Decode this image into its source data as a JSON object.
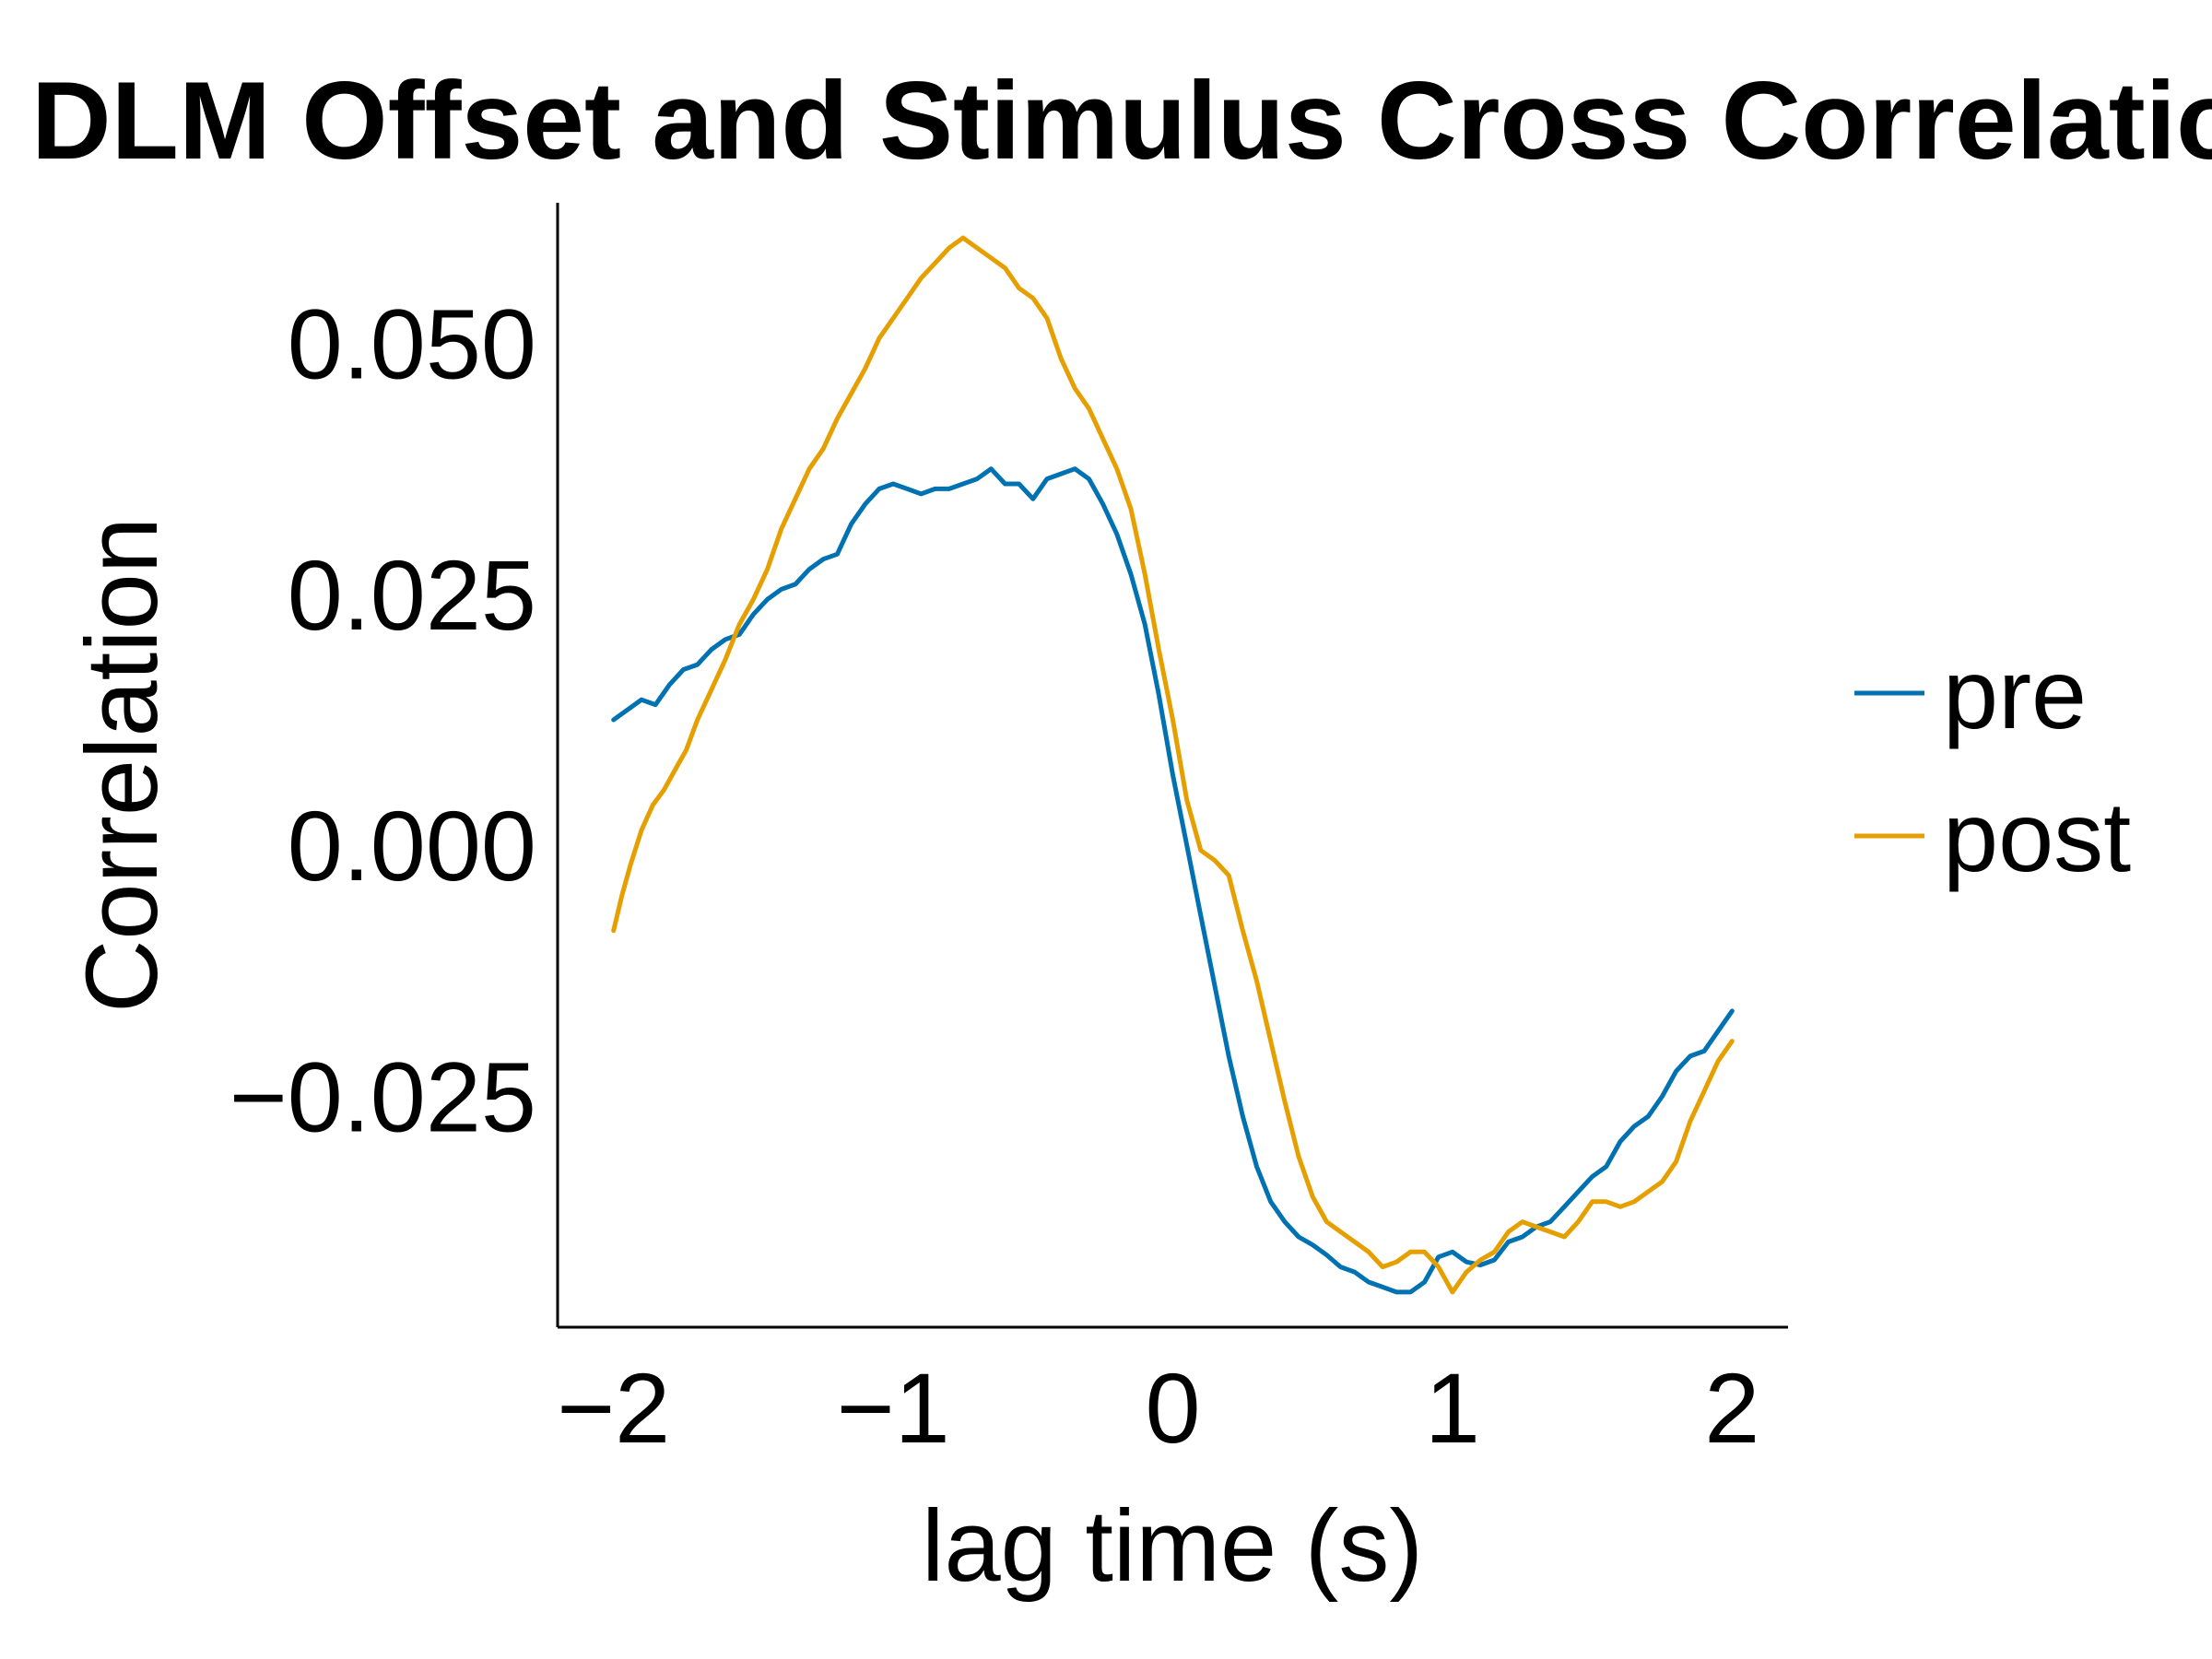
{
  "chart_data": {
    "type": "line",
    "title": "DLM Offset and Stimulus Cross Correlatio",
    "xlabel": "lag time (s)",
    "ylabel": "Correlation",
    "xlim": [
      -2.2,
      2.2
    ],
    "ylim": [
      -0.048,
      0.064
    ],
    "x_ticks": [
      -2,
      -1,
      0,
      1,
      2
    ],
    "x_tick_labels": [
      "−2",
      "−1",
      "0",
      "1",
      "2"
    ],
    "y_ticks": [
      -0.025,
      0.0,
      0.025,
      0.05
    ],
    "y_tick_labels": [
      "−0.025",
      "0.000",
      "0.025",
      "0.050"
    ],
    "grid": false,
    "legend_position": "right",
    "series": [
      {
        "name": "pre",
        "color": "#0072B2",
        "points": [
          [
            -2.0,
            0.0125
          ],
          [
            -1.9,
            0.0145
          ],
          [
            -1.85,
            0.014
          ],
          [
            -1.8,
            0.016
          ],
          [
            -1.75,
            0.0175
          ],
          [
            -1.7,
            0.018
          ],
          [
            -1.65,
            0.0195
          ],
          [
            -1.6,
            0.0205
          ],
          [
            -1.55,
            0.021
          ],
          [
            -1.5,
            0.023
          ],
          [
            -1.45,
            0.0245
          ],
          [
            -1.4,
            0.0255
          ],
          [
            -1.35,
            0.026
          ],
          [
            -1.3,
            0.0275
          ],
          [
            -1.25,
            0.0285
          ],
          [
            -1.2,
            0.029
          ],
          [
            -1.15,
            0.032
          ],
          [
            -1.1,
            0.034
          ],
          [
            -1.05,
            0.0355
          ],
          [
            -1.0,
            0.036
          ],
          [
            -0.95,
            0.0355
          ],
          [
            -0.9,
            0.035
          ],
          [
            -0.85,
            0.0355
          ],
          [
            -0.8,
            0.0355
          ],
          [
            -0.75,
            0.036
          ],
          [
            -0.7,
            0.0365
          ],
          [
            -0.65,
            0.0375
          ],
          [
            -0.6,
            0.036
          ],
          [
            -0.55,
            0.036
          ],
          [
            -0.5,
            0.0345
          ],
          [
            -0.45,
            0.0365
          ],
          [
            -0.4,
            0.037
          ],
          [
            -0.35,
            0.0375
          ],
          [
            -0.3,
            0.0365
          ],
          [
            -0.25,
            0.034
          ],
          [
            -0.2,
            0.031
          ],
          [
            -0.15,
            0.027
          ],
          [
            -0.1,
            0.022
          ],
          [
            -0.05,
            0.015
          ],
          [
            0.0,
            0.007
          ],
          [
            0.05,
            0.0
          ],
          [
            0.1,
            -0.007
          ],
          [
            0.15,
            -0.014
          ],
          [
            0.2,
            -0.021
          ],
          [
            0.25,
            -0.027
          ],
          [
            0.3,
            -0.032
          ],
          [
            0.35,
            -0.0355
          ],
          [
            0.4,
            -0.0375
          ],
          [
            0.45,
            -0.039
          ],
          [
            0.5,
            -0.0398
          ],
          [
            0.55,
            -0.0408
          ],
          [
            0.6,
            -0.042
          ],
          [
            0.65,
            -0.0425
          ],
          [
            0.7,
            -0.0435
          ],
          [
            0.75,
            -0.044
          ],
          [
            0.8,
            -0.0445
          ],
          [
            0.85,
            -0.0445
          ],
          [
            0.9,
            -0.0435
          ],
          [
            0.95,
            -0.041
          ],
          [
            1.0,
            -0.0405
          ],
          [
            1.05,
            -0.0415
          ],
          [
            1.1,
            -0.0418
          ],
          [
            1.15,
            -0.0413
          ],
          [
            1.2,
            -0.0395
          ],
          [
            1.25,
            -0.039
          ],
          [
            1.3,
            -0.038
          ],
          [
            1.35,
            -0.0375
          ],
          [
            1.4,
            -0.036
          ],
          [
            1.45,
            -0.0345
          ],
          [
            1.5,
            -0.033
          ],
          [
            1.55,
            -0.032
          ],
          [
            1.6,
            -0.0295
          ],
          [
            1.65,
            -0.028
          ],
          [
            1.7,
            -0.027
          ],
          [
            1.75,
            -0.025
          ],
          [
            1.8,
            -0.0225
          ],
          [
            1.85,
            -0.021
          ],
          [
            1.9,
            -0.0205
          ],
          [
            1.95,
            -0.0185
          ],
          [
            2.0,
            -0.0165
          ]
        ]
      },
      {
        "name": "post",
        "color": "#E69F00",
        "points": [
          [
            -2.0,
            -0.0085
          ],
          [
            -1.97,
            -0.005
          ],
          [
            -1.94,
            -0.002
          ],
          [
            -1.9,
            0.0015
          ],
          [
            -1.86,
            0.004
          ],
          [
            -1.82,
            0.0055
          ],
          [
            -1.78,
            0.0075
          ],
          [
            -1.74,
            0.0095
          ],
          [
            -1.7,
            0.0125
          ],
          [
            -1.65,
            0.0155
          ],
          [
            -1.6,
            0.0185
          ],
          [
            -1.55,
            0.022
          ],
          [
            -1.5,
            0.0245
          ],
          [
            -1.45,
            0.0275
          ],
          [
            -1.4,
            0.0315
          ],
          [
            -1.35,
            0.0345
          ],
          [
            -1.3,
            0.0375
          ],
          [
            -1.25,
            0.0395
          ],
          [
            -1.2,
            0.0425
          ],
          [
            -1.15,
            0.045
          ],
          [
            -1.1,
            0.0475
          ],
          [
            -1.05,
            0.0505
          ],
          [
            -1.0,
            0.0525
          ],
          [
            -0.95,
            0.0545
          ],
          [
            -0.9,
            0.0565
          ],
          [
            -0.85,
            0.058
          ],
          [
            -0.8,
            0.0595
          ],
          [
            -0.75,
            0.0605
          ],
          [
            -0.7,
            0.0595
          ],
          [
            -0.65,
            0.0585
          ],
          [
            -0.6,
            0.0575
          ],
          [
            -0.55,
            0.0555
          ],
          [
            -0.5,
            0.0545
          ],
          [
            -0.45,
            0.0525
          ],
          [
            -0.4,
            0.0485
          ],
          [
            -0.35,
            0.0455
          ],
          [
            -0.3,
            0.0435
          ],
          [
            -0.25,
            0.0405
          ],
          [
            -0.2,
            0.0375
          ],
          [
            -0.15,
            0.0335
          ],
          [
            -0.1,
            0.027
          ],
          [
            -0.05,
            0.0195
          ],
          [
            0.0,
            0.0125
          ],
          [
            0.05,
            0.0045
          ],
          [
            0.1,
            -0.0005
          ],
          [
            0.15,
            -0.0015
          ],
          [
            0.2,
            -0.003
          ],
          [
            0.25,
            -0.0085
          ],
          [
            0.3,
            -0.0135
          ],
          [
            0.35,
            -0.0195
          ],
          [
            0.4,
            -0.0255
          ],
          [
            0.45,
            -0.031
          ],
          [
            0.5,
            -0.035
          ],
          [
            0.55,
            -0.0375
          ],
          [
            0.6,
            -0.0385
          ],
          [
            0.65,
            -0.0395
          ],
          [
            0.7,
            -0.0405
          ],
          [
            0.75,
            -0.042
          ],
          [
            0.8,
            -0.0415
          ],
          [
            0.85,
            -0.0405
          ],
          [
            0.9,
            -0.0405
          ],
          [
            0.95,
            -0.042
          ],
          [
            1.0,
            -0.0445
          ],
          [
            1.05,
            -0.0425
          ],
          [
            1.1,
            -0.0413
          ],
          [
            1.15,
            -0.0405
          ],
          [
            1.2,
            -0.0385
          ],
          [
            1.25,
            -0.0375
          ],
          [
            1.3,
            -0.038
          ],
          [
            1.35,
            -0.0385
          ],
          [
            1.4,
            -0.039
          ],
          [
            1.45,
            -0.0375
          ],
          [
            1.5,
            -0.0355
          ],
          [
            1.55,
            -0.0355
          ],
          [
            1.6,
            -0.036
          ],
          [
            1.65,
            -0.0355
          ],
          [
            1.7,
            -0.0345
          ],
          [
            1.75,
            -0.0335
          ],
          [
            1.8,
            -0.0315
          ],
          [
            1.85,
            -0.0275
          ],
          [
            1.9,
            -0.0245
          ],
          [
            1.95,
            -0.0215
          ],
          [
            2.0,
            -0.0195
          ]
        ]
      }
    ]
  }
}
